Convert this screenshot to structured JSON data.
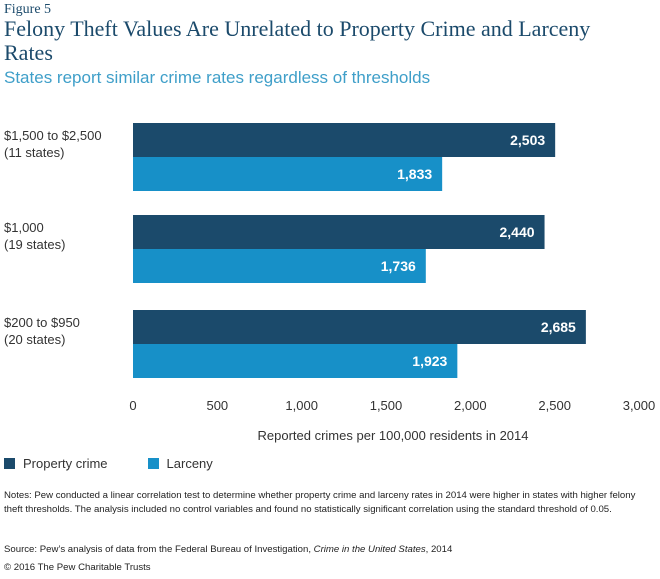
{
  "figure_label": "Figure 5",
  "chart_data": {
    "type": "bar",
    "orientation": "horizontal",
    "title": "Felony Theft Values Are Unrelated to Property Crime and Larceny Rates",
    "subtitle": "States report similar crime rates regardless of thresholds",
    "categories": [
      {
        "label": "$1,500 to $2,500",
        "sublabel": "(11 states)"
      },
      {
        "label": "$1,000",
        "sublabel": "(19 states)"
      },
      {
        "label": "$200 to $950",
        "sublabel": "(20 states)"
      }
    ],
    "series": [
      {
        "name": "Property crime",
        "color": "#1b4a6b",
        "values": [
          2503,
          2440,
          2685
        ],
        "value_labels": [
          "2,503",
          "2,440",
          "2,685"
        ]
      },
      {
        "name": "Larceny",
        "color": "#1790c8",
        "values": [
          1833,
          1736,
          1923
        ],
        "value_labels": [
          "1,833",
          "1,736",
          "1,923"
        ]
      }
    ],
    "xlabel": "Reported crimes per 100,000 residents in 2014",
    "xlim": [
      0,
      3000
    ],
    "xticks": [
      0,
      500,
      1000,
      1500,
      2000,
      2500,
      3000
    ],
    "xtick_labels": [
      "0",
      "500",
      "1,000",
      "1,500",
      "2,000",
      "2,500",
      "3,000"
    ],
    "grid": false,
    "legend_position": "bottom-left"
  },
  "notes": "Notes: Pew conducted a linear correlation test to determine whether property crime and larceny rates in 2014 were higher in states with higher felony theft thresholds. The analysis included no control variables and found no statistically significant correlation using the standard threshold of 0.05.",
  "source": {
    "prefix": "Source: Pew’s analysis of data from the Federal Bureau of Investigation, ",
    "italic": "Crime in the United States",
    "suffix": ", 2014"
  },
  "copyright": "© 2016 The Pew Charitable Trusts"
}
